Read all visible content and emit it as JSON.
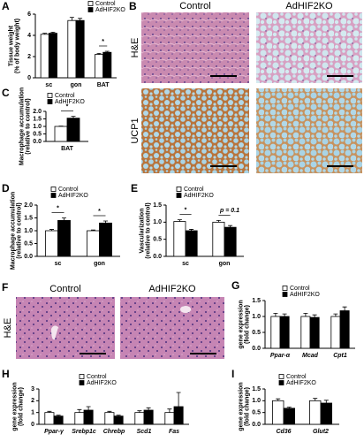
{
  "chart_data": [
    {
      "panel": "A",
      "type": "bar",
      "ylabel": [
        "Tissue weight",
        "(% of body weight)"
      ],
      "categories": [
        "sc",
        "gon",
        "BAT"
      ],
      "series": [
        {
          "name": "Control",
          "color": "#ffffff",
          "values": [
            4.1,
            5.4,
            2.2
          ],
          "errors": [
            0.1,
            0.3,
            0.1
          ]
        },
        {
          "name": "AdHIF2KO",
          "color": "#000000",
          "values": [
            4.2,
            5.4,
            2.4
          ],
          "errors": [
            0.1,
            0.2,
            0.1
          ]
        }
      ],
      "ylim": [
        0,
        6
      ],
      "yticks": [
        0,
        2,
        4,
        6
      ],
      "annotations": [
        {
          "text": "*",
          "category": "BAT"
        }
      ]
    },
    {
      "panel": "C",
      "type": "bar",
      "ylabel": [
        "Macrophage accumulation",
        "(relative to control)"
      ],
      "categories": [
        "BAT"
      ],
      "series": [
        {
          "name": "Control",
          "color": "#ffffff",
          "values": [
            1.0
          ],
          "errors": [
            0.02
          ]
        },
        {
          "name": "AdHIF2KO",
          "color": "#000000",
          "values": [
            1.55
          ],
          "errors": [
            0.12
          ]
        }
      ],
      "ylim": [
        0,
        2
      ],
      "yticks": [
        {
          "value": 0,
          "label": "0.0"
        },
        {
          "value": 0.5,
          "label": "0.5"
        },
        {
          "value": 1,
          "label": "1.0"
        },
        {
          "value": 1.5,
          "label": "1.5"
        },
        {
          "value": 2,
          "label": "2.0"
        }
      ],
      "annotations": [
        {
          "text": "*",
          "category": "BAT"
        }
      ]
    },
    {
      "panel": "D",
      "type": "bar",
      "ylabel": [
        "Macrophage accumulation",
        "(relative to control)"
      ],
      "categories": [
        "sc",
        "gon"
      ],
      "series": [
        {
          "name": "Control",
          "color": "#ffffff",
          "values": [
            1.0,
            1.0
          ],
          "errors": [
            0.05,
            0.03
          ]
        },
        {
          "name": "AdHIF2KO",
          "color": "#000000",
          "values": [
            1.4,
            1.3
          ],
          "errors": [
            0.1,
            0.08
          ]
        }
      ],
      "ylim": [
        0,
        2
      ],
      "yticks": [
        {
          "value": 0,
          "label": "0.0"
        },
        {
          "value": 0.5,
          "label": "0.5"
        },
        {
          "value": 1,
          "label": "1.0"
        },
        {
          "value": 1.5,
          "label": "1.5"
        },
        {
          "value": 2,
          "label": "2.0"
        }
      ],
      "annotations": [
        {
          "text": "*",
          "category": "sc"
        },
        {
          "text": "*",
          "category": "gon"
        }
      ]
    },
    {
      "panel": "E",
      "type": "bar",
      "ylabel": [
        "Vascularization",
        "(relative to control)"
      ],
      "categories": [
        "sc",
        "gon"
      ],
      "series": [
        {
          "name": "Control",
          "color": "#ffffff",
          "values": [
            1.02,
            1.0
          ],
          "errors": [
            0.05,
            0.05
          ]
        },
        {
          "name": "AdHIF2KO",
          "color": "#000000",
          "values": [
            0.75,
            0.85
          ],
          "errors": [
            0.04,
            0.05
          ]
        }
      ],
      "ylim": [
        0,
        1.5
      ],
      "yticks": [
        {
          "value": 0,
          "label": "0.0"
        },
        {
          "value": 0.5,
          "label": "0.5"
        },
        {
          "value": 1,
          "label": "1.0"
        },
        {
          "value": 1.5,
          "label": "1.5"
        }
      ],
      "annotations": [
        {
          "text": "*",
          "category": "sc"
        },
        {
          "text": "p = 0.1",
          "category": "gon"
        }
      ]
    },
    {
      "panel": "G",
      "type": "bar",
      "ylabel": [
        "gene expression",
        "(fold change)"
      ],
      "categories": [
        "Ppar-α",
        "Mcad",
        "Cpt1"
      ],
      "series": [
        {
          "name": "Control",
          "color": "#ffffff",
          "values": [
            1.0,
            1.0,
            1.0
          ],
          "errors": [
            0.1,
            0.1,
            0.08
          ]
        },
        {
          "name": "AdHIF2KO",
          "color": "#000000",
          "values": [
            1.0,
            0.97,
            1.18
          ],
          "errors": [
            0.08,
            0.08,
            0.12
          ]
        }
      ],
      "ylim": [
        0,
        1.5
      ],
      "yticks": [
        {
          "value": 0,
          "label": "0.0"
        },
        {
          "value": 0.5,
          "label": "0.5"
        },
        {
          "value": 1,
          "label": "1.0"
        },
        {
          "value": 1.5,
          "label": "1.5"
        }
      ]
    },
    {
      "panel": "H",
      "type": "bar",
      "ylabel": [
        "gene expression",
        "(fold change)"
      ],
      "categories": [
        "Ppar-γ",
        "Srebp1c",
        "Chrebp",
        "Scd1",
        "Fas"
      ],
      "series": [
        {
          "name": "Control",
          "color": "#ffffff",
          "values": [
            1.0,
            1.0,
            1.0,
            1.0,
            1.0
          ],
          "errors": [
            0.1,
            0.25,
            0.1,
            0.15,
            0.3
          ]
        },
        {
          "name": "AdHIF2KO",
          "color": "#000000",
          "values": [
            0.7,
            1.2,
            0.7,
            1.2,
            1.5
          ],
          "errors": [
            0.08,
            0.3,
            0.08,
            0.2,
            1.2
          ]
        }
      ],
      "ylim": [
        0,
        3
      ],
      "yticks": [
        0,
        1,
        2,
        3
      ]
    },
    {
      "panel": "I",
      "type": "bar",
      "ylabel": [
        "gene expression",
        "(fold change)"
      ],
      "categories": [
        "Cd36",
        "Glut2"
      ],
      "series": [
        {
          "name": "Control",
          "color": "#ffffff",
          "values": [
            1.0,
            1.0
          ],
          "errors": [
            0.08,
            0.1
          ]
        },
        {
          "name": "AdHIF2KO",
          "color": "#000000",
          "values": [
            0.68,
            0.9
          ],
          "errors": [
            0.05,
            0.12
          ]
        }
      ],
      "ylim": [
        0,
        1.5
      ],
      "yticks": [
        {
          "value": 0,
          "label": "0.0"
        },
        {
          "value": 0.5,
          "label": "0.5"
        },
        {
          "value": 1,
          "label": "1.0"
        },
        {
          "value": 1.5,
          "label": "1.5"
        }
      ]
    }
  ],
  "micrographs": [
    {
      "panel": "B",
      "columns": [
        "Control",
        "AdHIF2KO"
      ],
      "rows": [
        "H&E",
        "UCP1"
      ]
    },
    {
      "panel": "F",
      "columns": [
        "Control",
        "AdHIF2KO"
      ],
      "rows": [
        "H&E"
      ]
    }
  ]
}
